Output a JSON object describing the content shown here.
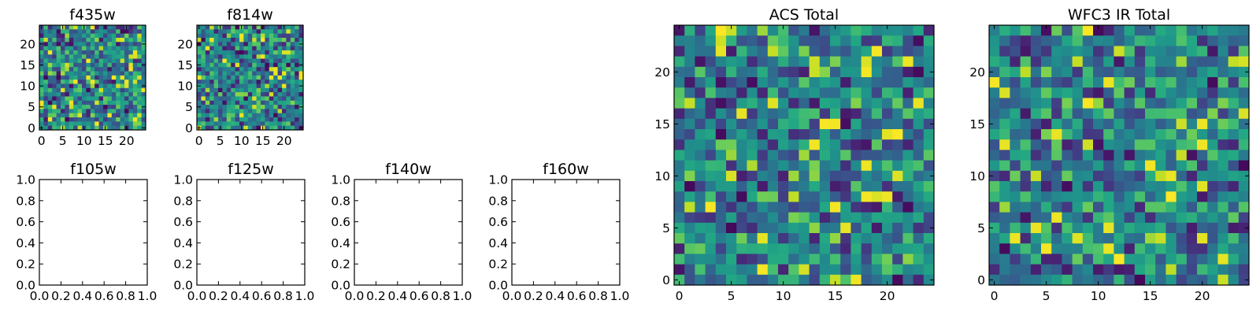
{
  "chart_data": [
    {
      "type": "heatmap",
      "title": "f435w",
      "rows": 25,
      "cols": 25,
      "xlim": [
        -0.5,
        24.5
      ],
      "ylim": [
        -0.5,
        24.5
      ],
      "xticks": [
        0,
        5,
        10,
        15,
        20
      ],
      "yticks": [
        0,
        5,
        10,
        15,
        20
      ],
      "colormap": "viridis",
      "seed": 11,
      "value_range": [
        0,
        1
      ],
      "note": "pixel noise image"
    },
    {
      "type": "heatmap",
      "title": "f814w",
      "rows": 25,
      "cols": 25,
      "xlim": [
        -0.5,
        24.5
      ],
      "ylim": [
        -0.5,
        24.5
      ],
      "xticks": [
        0,
        5,
        10,
        15,
        20
      ],
      "yticks": [
        0,
        5,
        10,
        15,
        20
      ],
      "colormap": "viridis",
      "seed": 29,
      "value_range": [
        0,
        1
      ],
      "note": "pixel noise image"
    },
    {
      "type": "line",
      "title": "f105w",
      "series": [],
      "xlim": [
        0,
        1
      ],
      "ylim": [
        0,
        1
      ],
      "xticks": [
        0.0,
        0.2,
        0.4,
        0.6,
        0.8,
        1.0
      ],
      "yticks": [
        0.0,
        0.2,
        0.4,
        0.6,
        0.8,
        1.0
      ]
    },
    {
      "type": "line",
      "title": "f125w",
      "series": [],
      "xlim": [
        0,
        1
      ],
      "ylim": [
        0,
        1
      ],
      "xticks": [
        0.0,
        0.2,
        0.4,
        0.6,
        0.8,
        1.0
      ],
      "yticks": [
        0.0,
        0.2,
        0.4,
        0.6,
        0.8,
        1.0
      ]
    },
    {
      "type": "line",
      "title": "f140w",
      "series": [],
      "xlim": [
        0,
        1
      ],
      "ylim": [
        0,
        1
      ],
      "xticks": [
        0.0,
        0.2,
        0.4,
        0.6,
        0.8,
        1.0
      ],
      "yticks": [
        0.0,
        0.2,
        0.4,
        0.6,
        0.8,
        1.0
      ]
    },
    {
      "type": "line",
      "title": "f160w",
      "series": [],
      "xlim": [
        0,
        1
      ],
      "ylim": [
        0,
        1
      ],
      "xticks": [
        0.0,
        0.2,
        0.4,
        0.6,
        0.8,
        1.0
      ],
      "yticks": [
        0.0,
        0.2,
        0.4,
        0.6,
        0.8,
        1.0
      ]
    },
    {
      "type": "heatmap",
      "title": "ACS Total",
      "rows": 25,
      "cols": 25,
      "xlim": [
        -0.5,
        24.5
      ],
      "ylim": [
        -0.5,
        24.5
      ],
      "xticks": [
        0,
        5,
        10,
        15,
        20
      ],
      "yticks": [
        0,
        5,
        10,
        15,
        20
      ],
      "colormap": "viridis",
      "seed": 47,
      "value_range": [
        0,
        1
      ],
      "note": "pixel noise image"
    },
    {
      "type": "heatmap",
      "title": "WFC3 IR Total",
      "rows": 25,
      "cols": 25,
      "xlim": [
        -0.5,
        24.5
      ],
      "ylim": [
        -0.5,
        24.5
      ],
      "xticks": [
        0,
        5,
        10,
        15,
        20
      ],
      "yticks": [
        0,
        5,
        10,
        15,
        20
      ],
      "colormap": "viridis",
      "seed": 83,
      "value_range": [
        0,
        1
      ],
      "note": "pixel noise image"
    }
  ]
}
